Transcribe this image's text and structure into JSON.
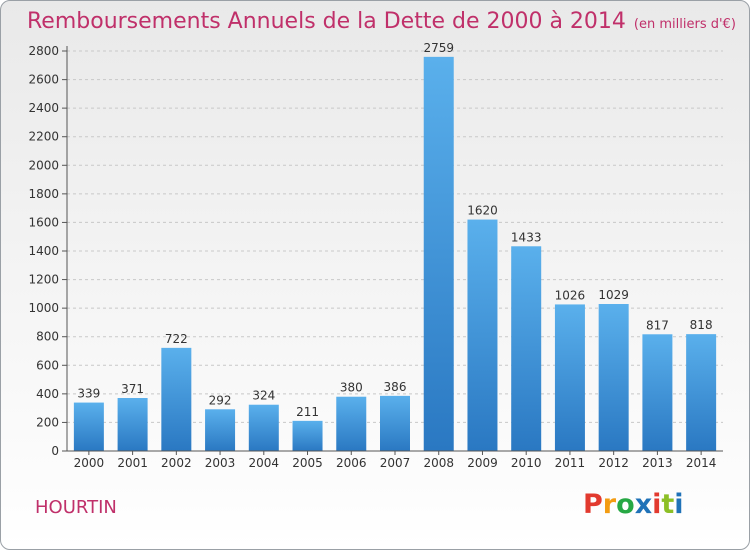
{
  "title": "Remboursements Annuels de la Dette de 2000 à 2014",
  "unit": "(en milliers d'€)",
  "commune": "HOURTIN",
  "logo": {
    "text": "Proxiti",
    "colors": [
      "#e23a2f",
      "#f39c12",
      "#27a844",
      "#1f72b8",
      "#e23a2f",
      "#8cbf26",
      "#1f72b8"
    ]
  },
  "chart_data": {
    "type": "bar",
    "categories": [
      "2000",
      "2001",
      "2002",
      "2003",
      "2004",
      "2005",
      "2006",
      "2007",
      "2008",
      "2009",
      "2010",
      "2011",
      "2012",
      "2013",
      "2014"
    ],
    "values": [
      339,
      371,
      722,
      292,
      324,
      211,
      380,
      386,
      2759,
      1620,
      1433,
      1026,
      1029,
      817,
      818
    ],
    "title": "Remboursements Annuels de la Dette de 2000 à 2014",
    "ylim": [
      0,
      2800
    ],
    "yticks": [
      0,
      200,
      400,
      600,
      800,
      1000,
      1200,
      1400,
      1600,
      1800,
      2000,
      2200,
      2400,
      2600,
      2800
    ],
    "grid": true,
    "bar_color": "#4a9fe0"
  }
}
